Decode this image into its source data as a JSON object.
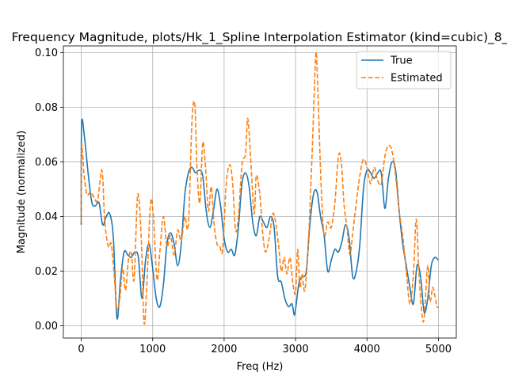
{
  "chart_data": {
    "type": "line",
    "title": "Frequency Magnitude, plots/Hk_1_Spline Interpolation Estimator (kind=cubic)_8_",
    "xlabel": "Freq (Hz)",
    "ylabel": "Magnitude (normalized)",
    "xlim": [
      -250,
      5250
    ],
    "ylim": [
      -0.0045,
      0.1025
    ],
    "xticks": [
      0,
      1000,
      2000,
      3000,
      4000,
      5000
    ],
    "xtick_labels": [
      "0",
      "1000",
      "2000",
      "3000",
      "4000",
      "5000"
    ],
    "yticks": [
      0.0,
      0.02,
      0.04,
      0.06,
      0.08,
      0.1
    ],
    "ytick_labels": [
      "0.00",
      "0.02",
      "0.04",
      "0.06",
      "0.08",
      "0.10"
    ],
    "grid": true,
    "legend_position": "top-right",
    "series": [
      {
        "name": "True",
        "color": "#1f77b4",
        "style": "solid",
        "points": [
          [
            0,
            0.037
          ],
          [
            5,
            0.074
          ],
          [
            50,
            0.068
          ],
          [
            100,
            0.055
          ],
          [
            150,
            0.045
          ],
          [
            200,
            0.044
          ],
          [
            250,
            0.045
          ],
          [
            300,
            0.037
          ],
          [
            350,
            0.04
          ],
          [
            400,
            0.041
          ],
          [
            450,
            0.032
          ],
          [
            500,
            0.0028
          ],
          [
            550,
            0.017
          ],
          [
            600,
            0.027
          ],
          [
            650,
            0.026
          ],
          [
            700,
            0.025
          ],
          [
            750,
            0.027
          ],
          [
            800,
            0.025
          ],
          [
            850,
            0.01
          ],
          [
            900,
            0.024
          ],
          [
            950,
            0.03
          ],
          [
            1000,
            0.021
          ],
          [
            1050,
            0.01
          ],
          [
            1100,
            0.007
          ],
          [
            1150,
            0.015
          ],
          [
            1200,
            0.03
          ],
          [
            1250,
            0.034
          ],
          [
            1300,
            0.03
          ],
          [
            1350,
            0.022
          ],
          [
            1400,
            0.03
          ],
          [
            1450,
            0.048
          ],
          [
            1500,
            0.056
          ],
          [
            1550,
            0.058
          ],
          [
            1600,
            0.056
          ],
          [
            1650,
            0.057
          ],
          [
            1700,
            0.055
          ],
          [
            1750,
            0.042
          ],
          [
            1800,
            0.036
          ],
          [
            1850,
            0.042
          ],
          [
            1900,
            0.05
          ],
          [
            1950,
            0.044
          ],
          [
            2000,
            0.032
          ],
          [
            2050,
            0.027
          ],
          [
            2100,
            0.028
          ],
          [
            2150,
            0.026
          ],
          [
            2200,
            0.036
          ],
          [
            2250,
            0.052
          ],
          [
            2300,
            0.056
          ],
          [
            2350,
            0.051
          ],
          [
            2400,
            0.038
          ],
          [
            2450,
            0.033
          ],
          [
            2500,
            0.04
          ],
          [
            2550,
            0.038
          ],
          [
            2600,
            0.036
          ],
          [
            2650,
            0.04
          ],
          [
            2700,
            0.036
          ],
          [
            2750,
            0.018
          ],
          [
            2800,
            0.016
          ],
          [
            2850,
            0.01
          ],
          [
            2900,
            0.007
          ],
          [
            2950,
            0.008
          ],
          [
            2980,
            0.004
          ],
          [
            3000,
            0.006
          ],
          [
            3050,
            0.016
          ],
          [
            3100,
            0.018
          ],
          [
            3150,
            0.02
          ],
          [
            3200,
            0.037
          ],
          [
            3250,
            0.048
          ],
          [
            3300,
            0.049
          ],
          [
            3350,
            0.04
          ],
          [
            3400,
            0.033
          ],
          [
            3450,
            0.02
          ],
          [
            3500,
            0.024
          ],
          [
            3550,
            0.028
          ],
          [
            3600,
            0.027
          ],
          [
            3650,
            0.031
          ],
          [
            3700,
            0.037
          ],
          [
            3750,
            0.032
          ],
          [
            3800,
            0.018
          ],
          [
            3850,
            0.02
          ],
          [
            3900,
            0.03
          ],
          [
            3950,
            0.05
          ],
          [
            4000,
            0.057
          ],
          [
            4050,
            0.056
          ],
          [
            4100,
            0.054
          ],
          [
            4150,
            0.056
          ],
          [
            4200,
            0.056
          ],
          [
            4250,
            0.043
          ],
          [
            4300,
            0.054
          ],
          [
            4350,
            0.06
          ],
          [
            4400,
            0.057
          ],
          [
            4450,
            0.042
          ],
          [
            4500,
            0.03
          ],
          [
            4550,
            0.022
          ],
          [
            4600,
            0.014
          ],
          [
            4650,
            0.008
          ],
          [
            4700,
            0.022
          ],
          [
            4750,
            0.018
          ],
          [
            4800,
            0.005
          ],
          [
            4850,
            0.01
          ],
          [
            4900,
            0.022
          ],
          [
            4950,
            0.025
          ],
          [
            5000,
            0.024
          ]
        ]
      },
      {
        "name": "Estimated",
        "color": "#ff7f0e",
        "style": "dashed",
        "points": [
          [
            0,
            0.038
          ],
          [
            5,
            0.066
          ],
          [
            40,
            0.055
          ],
          [
            80,
            0.048
          ],
          [
            130,
            0.049
          ],
          [
            180,
            0.047
          ],
          [
            230,
            0.046
          ],
          [
            290,
            0.057
          ],
          [
            330,
            0.038
          ],
          [
            380,
            0.029
          ],
          [
            420,
            0.03
          ],
          [
            460,
            0.019
          ],
          [
            500,
            0.006
          ],
          [
            540,
            0.01
          ],
          [
            580,
            0.021
          ],
          [
            620,
            0.013
          ],
          [
            660,
            0.024
          ],
          [
            700,
            0.027
          ],
          [
            740,
            0.017
          ],
          [
            790,
            0.048
          ],
          [
            840,
            0.032
          ],
          [
            880,
            0.001
          ],
          [
            920,
            0.016
          ],
          [
            970,
            0.045
          ],
          [
            1010,
            0.04
          ],
          [
            1060,
            0.017
          ],
          [
            1100,
            0.027
          ],
          [
            1150,
            0.04
          ],
          [
            1200,
            0.029
          ],
          [
            1250,
            0.033
          ],
          [
            1300,
            0.026
          ],
          [
            1350,
            0.035
          ],
          [
            1400,
            0.031
          ],
          [
            1450,
            0.04
          ],
          [
            1500,
            0.037
          ],
          [
            1550,
            0.075
          ],
          [
            1590,
            0.081
          ],
          [
            1620,
            0.058
          ],
          [
            1660,
            0.045
          ],
          [
            1700,
            0.067
          ],
          [
            1740,
            0.058
          ],
          [
            1780,
            0.042
          ],
          [
            1820,
            0.051
          ],
          [
            1860,
            0.037
          ],
          [
            1900,
            0.03
          ],
          [
            1940,
            0.029
          ],
          [
            1980,
            0.028
          ],
          [
            2030,
            0.052
          ],
          [
            2080,
            0.059
          ],
          [
            2120,
            0.052
          ],
          [
            2160,
            0.035
          ],
          [
            2200,
            0.04
          ],
          [
            2250,
            0.059
          ],
          [
            2300,
            0.063
          ],
          [
            2330,
            0.076
          ],
          [
            2370,
            0.062
          ],
          [
            2420,
            0.041
          ],
          [
            2450,
            0.055
          ],
          [
            2500,
            0.048
          ],
          [
            2540,
            0.034
          ],
          [
            2580,
            0.027
          ],
          [
            2630,
            0.032
          ],
          [
            2680,
            0.041
          ],
          [
            2720,
            0.038
          ],
          [
            2760,
            0.03
          ],
          [
            2800,
            0.02
          ],
          [
            2840,
            0.025
          ],
          [
            2880,
            0.019
          ],
          [
            2920,
            0.025
          ],
          [
            2960,
            0.016
          ],
          [
            3000,
            0.012
          ],
          [
            3030,
            0.028
          ],
          [
            3060,
            0.014
          ],
          [
            3090,
            0.019
          ],
          [
            3130,
            0.013
          ],
          [
            3180,
            0.031
          ],
          [
            3230,
            0.062
          ],
          [
            3280,
            0.098
          ],
          [
            3300,
            0.095
          ],
          [
            3320,
            0.08
          ],
          [
            3360,
            0.05
          ],
          [
            3400,
            0.033
          ],
          [
            3450,
            0.038
          ],
          [
            3500,
            0.036
          ],
          [
            3550,
            0.045
          ],
          [
            3600,
            0.062
          ],
          [
            3640,
            0.06
          ],
          [
            3680,
            0.044
          ],
          [
            3720,
            0.036
          ],
          [
            3760,
            0.026
          ],
          [
            3800,
            0.034
          ],
          [
            3850,
            0.045
          ],
          [
            3900,
            0.055
          ],
          [
            3950,
            0.061
          ],
          [
            4000,
            0.058
          ],
          [
            4050,
            0.052
          ],
          [
            4100,
            0.058
          ],
          [
            4150,
            0.053
          ],
          [
            4200,
            0.052
          ],
          [
            4250,
            0.062
          ],
          [
            4300,
            0.066
          ],
          [
            4350,
            0.064
          ],
          [
            4400,
            0.055
          ],
          [
            4450,
            0.042
          ],
          [
            4500,
            0.033
          ],
          [
            4550,
            0.02
          ],
          [
            4600,
            0.008
          ],
          [
            4650,
            0.019
          ],
          [
            4690,
            0.039
          ],
          [
            4730,
            0.018
          ],
          [
            4770,
            0.004
          ],
          [
            4800,
            0.003
          ],
          [
            4850,
            0.022
          ],
          [
            4880,
            0.009
          ],
          [
            4920,
            0.014
          ],
          [
            4950,
            0.011
          ],
          [
            4980,
            0.007
          ],
          [
            5000,
            0.007
          ]
        ]
      }
    ]
  }
}
